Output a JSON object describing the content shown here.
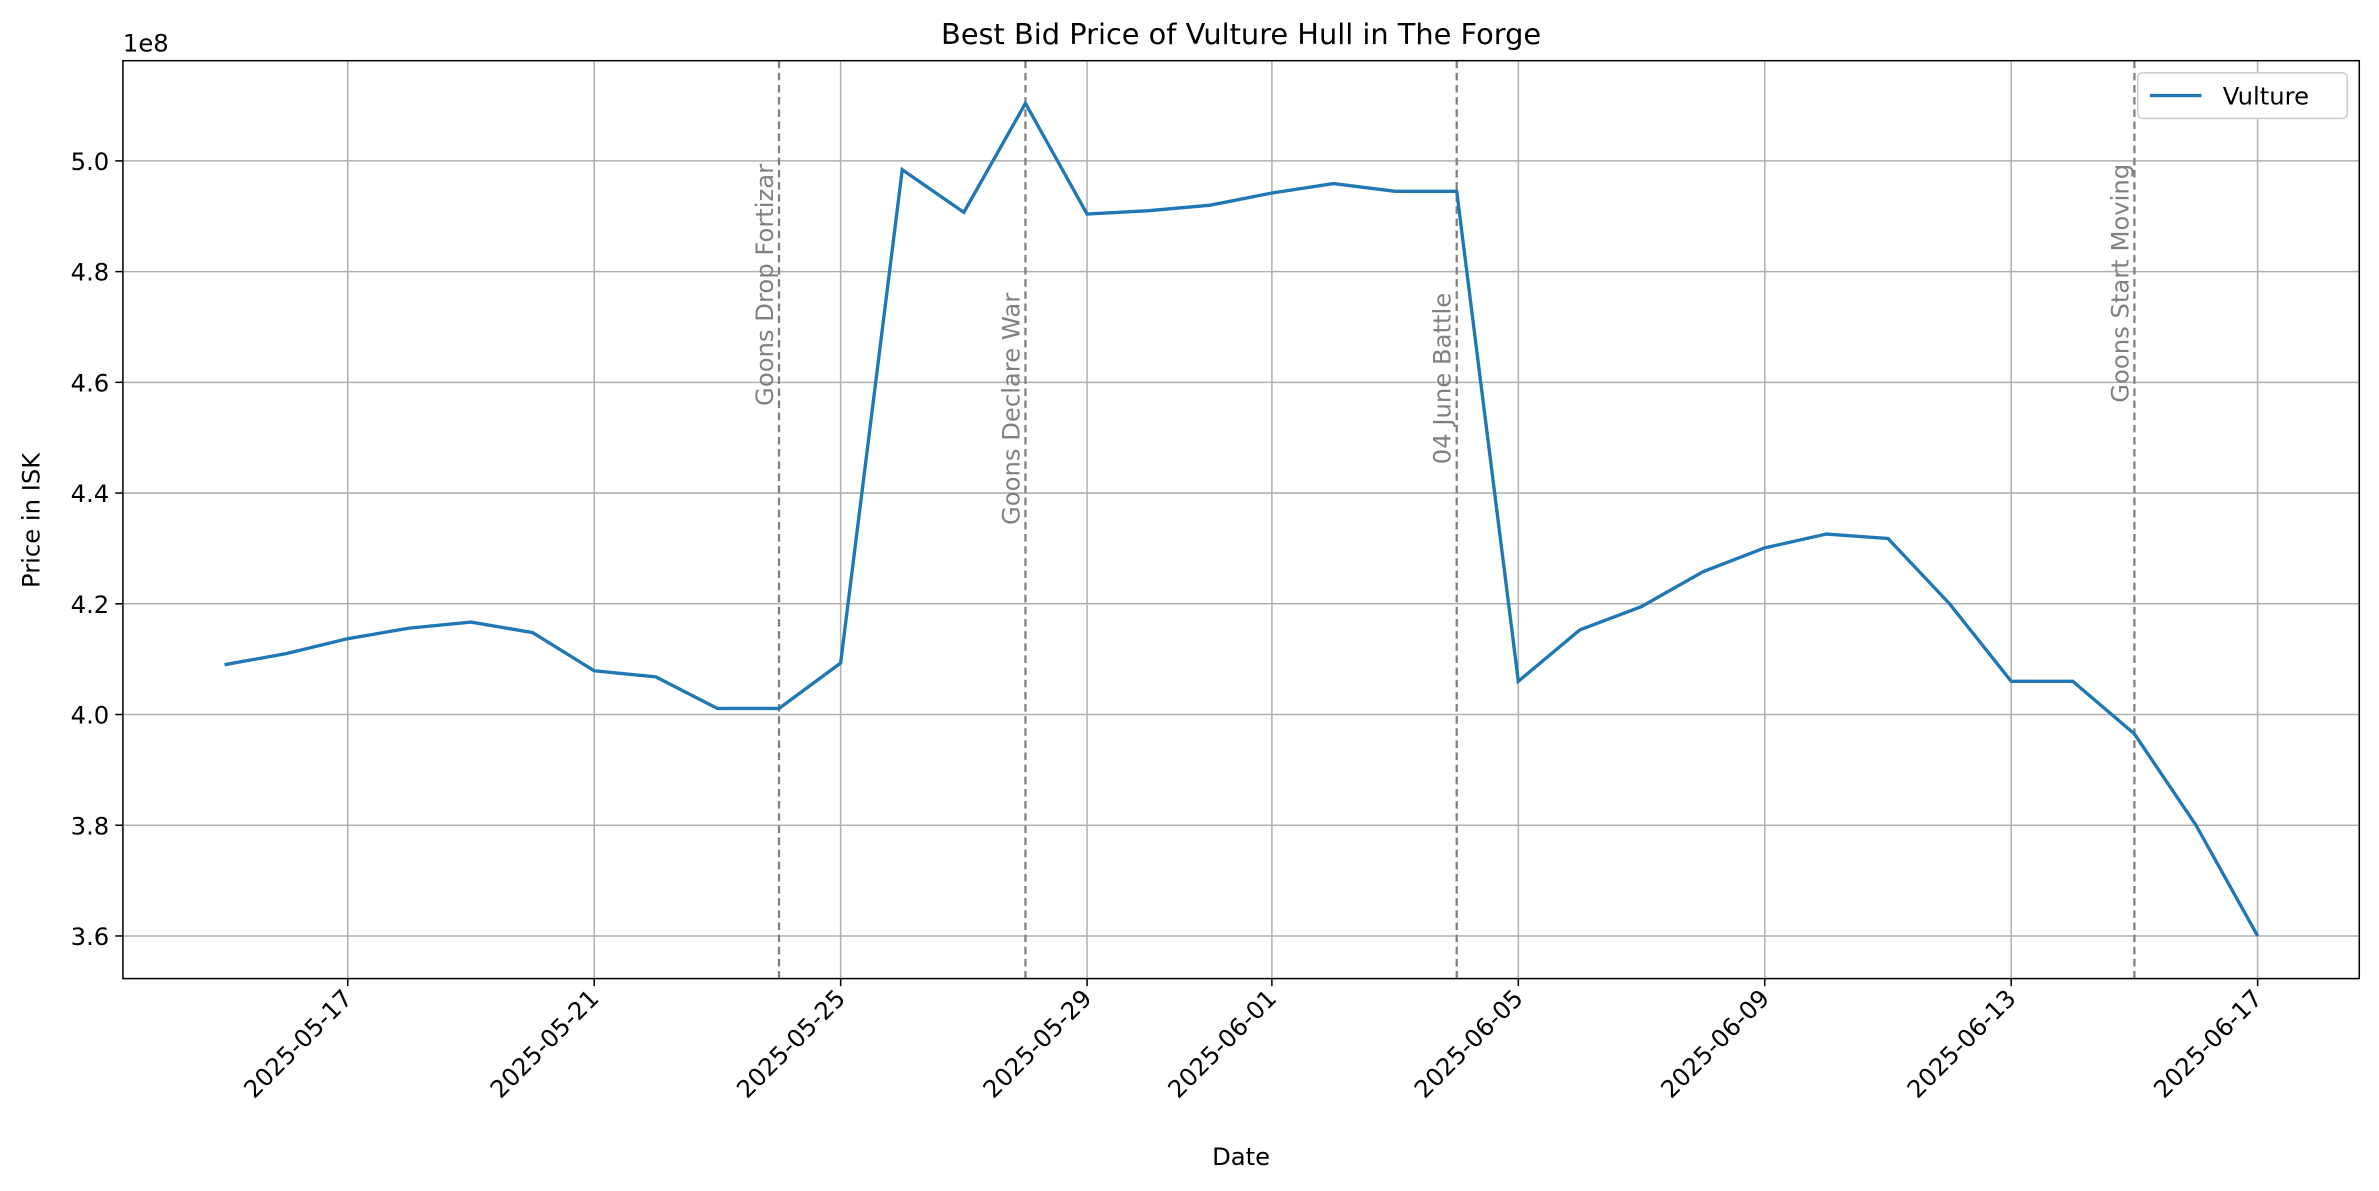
{
  "chart_data": {
    "type": "line",
    "title": "Best Bid Price of Vulture Hull in The Forge",
    "x_label": "Date",
    "y_label": "Price in ISK",
    "y_offset_label": "1e8",
    "x": [
      "2025-05-15",
      "2025-05-16",
      "2025-05-17",
      "2025-05-18",
      "2025-05-19",
      "2025-05-20",
      "2025-05-21",
      "2025-05-22",
      "2025-05-23",
      "2025-05-24",
      "2025-05-25",
      "2025-05-26",
      "2025-05-27",
      "2025-05-28",
      "2025-05-29",
      "2025-05-30",
      "2025-05-31",
      "2025-06-01",
      "2025-06-02",
      "2025-06-03",
      "2025-06-04",
      "2025-06-05",
      "2025-06-06",
      "2025-06-07",
      "2025-06-08",
      "2025-06-09",
      "2025-06-10",
      "2025-06-11",
      "2025-06-12",
      "2025-06-13",
      "2025-06-14",
      "2025-06-15",
      "2025-06-16",
      "2025-06-17"
    ],
    "series": [
      {
        "name": "Vulture",
        "color": "#1f77b4",
        "values": [
          409000000,
          411000000,
          413700000,
          415600000,
          416700000,
          414800000,
          407900000,
          406800000,
          401100000,
          401100000,
          409300000,
          498400000,
          490700000,
          510400000,
          490400000,
          491000000,
          492000000,
          494200000,
          495900000,
          494500000,
          494500000,
          406000000,
          415300000,
          419500000,
          425800000,
          430100000,
          432600000,
          431800000,
          420000000,
          406000000,
          406000000,
          396500000,
          380000000,
          360000000
        ]
      }
    ],
    "ylim": [
      352300000,
      518100000
    ],
    "yticks": [
      {
        "value": 360000000,
        "label": "3.6"
      },
      {
        "value": 380000000,
        "label": "3.8"
      },
      {
        "value": 400000000,
        "label": "4.0"
      },
      {
        "value": 420000000,
        "label": "4.2"
      },
      {
        "value": 440000000,
        "label": "4.4"
      },
      {
        "value": 460000000,
        "label": "4.6"
      },
      {
        "value": 480000000,
        "label": "4.8"
      },
      {
        "value": 500000000,
        "label": "5.0"
      }
    ],
    "xticks": [
      "2025-05-17",
      "2025-05-21",
      "2025-05-25",
      "2025-05-29",
      "2025-06-01",
      "2025-06-05",
      "2025-06-09",
      "2025-06-13",
      "2025-06-17"
    ],
    "annotations": [
      {
        "x": "2025-05-24",
        "label": "Goons Drop Fortizar"
      },
      {
        "x": "2025-05-28",
        "label": "Goons Declare War"
      },
      {
        "x": "2025-06-04",
        "label": "04 June Battle"
      },
      {
        "x": "2025-06-15",
        "label": "Goons Start Moving"
      }
    ],
    "grid": true,
    "legend": "upper right"
  }
}
